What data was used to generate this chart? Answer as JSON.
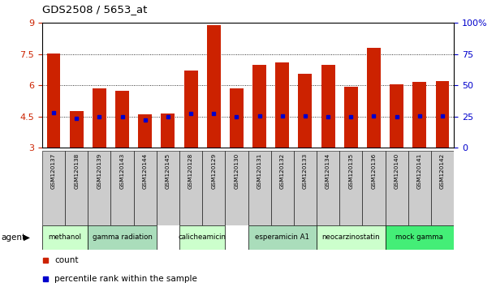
{
  "title": "GDS2508 / 5653_at",
  "samples": [
    "GSM120137",
    "GSM120138",
    "GSM120139",
    "GSM120143",
    "GSM120144",
    "GSM120145",
    "GSM120128",
    "GSM120129",
    "GSM120130",
    "GSM120131",
    "GSM120132",
    "GSM120133",
    "GSM120134",
    "GSM120135",
    "GSM120136",
    "GSM120140",
    "GSM120141",
    "GSM120142"
  ],
  "count_values": [
    7.55,
    4.75,
    5.85,
    5.75,
    4.6,
    4.65,
    6.7,
    8.9,
    5.85,
    7.0,
    7.1,
    6.55,
    7.0,
    5.95,
    7.8,
    6.05,
    6.15,
    6.2
  ],
  "percentile_values": [
    4.7,
    4.4,
    4.5,
    4.5,
    4.35,
    4.5,
    4.65,
    4.65,
    4.5,
    4.55,
    4.55,
    4.55,
    4.5,
    4.5,
    4.55,
    4.5,
    4.55,
    4.55
  ],
  "ymin": 3.0,
  "ymax": 9.0,
  "yticks_left": [
    3.0,
    4.5,
    6.0,
    7.5,
    9.0
  ],
  "yticks_left_labels": [
    "3",
    "4.5",
    "6",
    "7.5",
    "9"
  ],
  "yticks_right": [
    0,
    25,
    50,
    75,
    100
  ],
  "yticks_right_labels": [
    "0",
    "25",
    "50",
    "75",
    "100%"
  ],
  "bar_color": "#CC2200",
  "dot_color": "#0000CC",
  "agent_groups": [
    {
      "label": "methanol",
      "start": 0,
      "end": 2,
      "color": "#CCFFCC"
    },
    {
      "label": "gamma radiation",
      "start": 2,
      "end": 5,
      "color": "#AADDBB"
    },
    {
      "label": "calicheamicin",
      "start": 6,
      "end": 8,
      "color": "#CCFFCC"
    },
    {
      "label": "esperamicin A1",
      "start": 9,
      "end": 12,
      "color": "#AADDBB"
    },
    {
      "label": "neocarzinostatin",
      "start": 12,
      "end": 15,
      "color": "#CCFFCC"
    },
    {
      "label": "mock gamma",
      "start": 15,
      "end": 18,
      "color": "#44EE77"
    }
  ],
  "legend_count_label": "count",
  "legend_pct_label": "percentile rank within the sample",
  "agent_label": "agent",
  "sample_bg_color": "#CCCCCC",
  "fig_bg_color": "#FFFFFF"
}
